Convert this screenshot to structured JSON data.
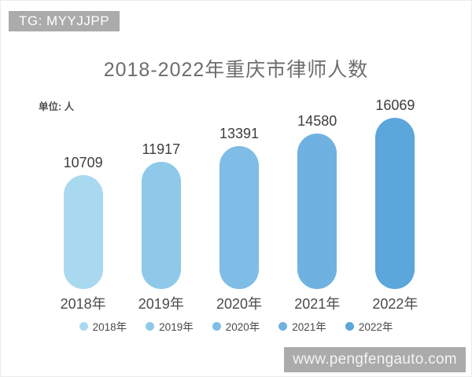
{
  "watermarks": {
    "top_left": "TG: MYYJJPP",
    "bottom_right": "www.pengfengauto.com"
  },
  "chart_data": {
    "type": "bar",
    "title": "2018-2022年重庆市律师人数",
    "unit_label": "单位: 人",
    "categories": [
      "2018年",
      "2019年",
      "2020年",
      "2021年",
      "2022年"
    ],
    "values": [
      10709,
      11917,
      13391,
      14580,
      16069
    ],
    "bar_colors": [
      "#a9d9ef",
      "#8ec9ea",
      "#7fbce6",
      "#6fb2e2",
      "#5ba6da"
    ],
    "legend": [
      "2018年",
      "2019年",
      "2020年",
      "2021年",
      "2022年"
    ],
    "legend_position": "bottom",
    "xlabel": "",
    "ylabel": "",
    "ylim": [
      0,
      16069
    ],
    "grid": false,
    "value_labels_shown": true
  }
}
